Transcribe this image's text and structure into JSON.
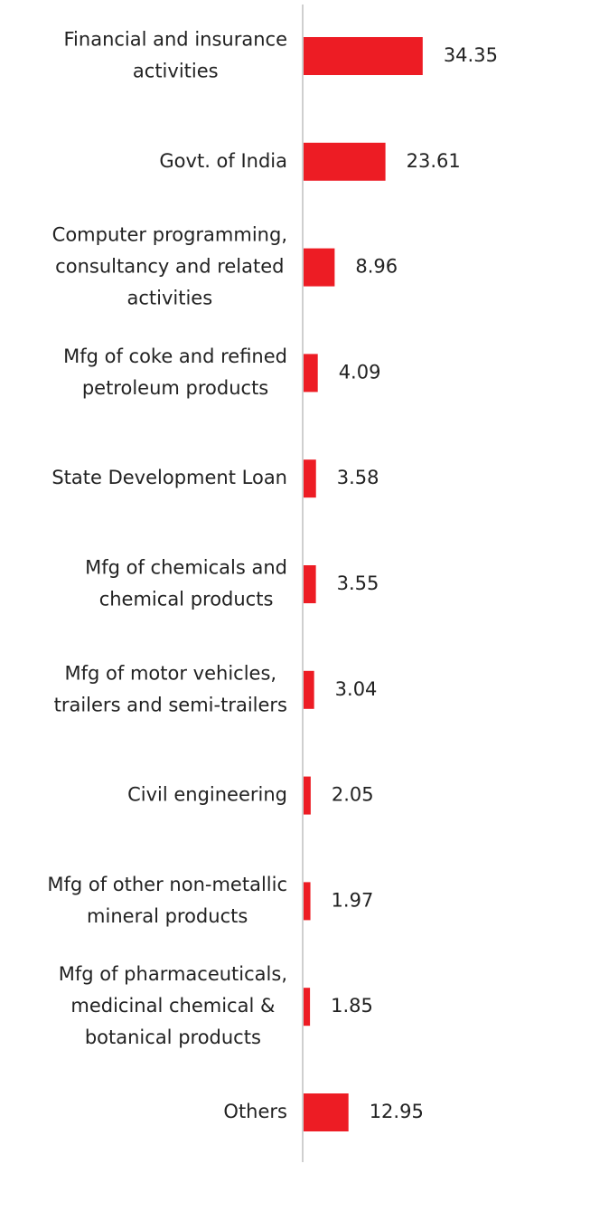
{
  "chart_data": {
    "type": "barh",
    "categories": [
      "Financial and insurance\nactivities",
      "Govt. of India",
      "Computer programming,\nconsultancy and related\nactivities",
      "Mfg of coke and refined\npetroleum products",
      "State Development Loan",
      "Mfg of chemicals and\nchemical products",
      "Mfg of motor vehicles,\ntrailers and semi-trailers",
      "Civil engineering",
      "Mfg of other non-metallic\nmineral products",
      "Mfg of pharmaceuticals,\nmedicinal chemical &\nbotanical products",
      "Others"
    ],
    "values": [
      34.35,
      23.61,
      8.96,
      4.09,
      3.58,
      3.55,
      3.04,
      2.05,
      1.97,
      1.85,
      12.95
    ],
    "value_labels": [
      "34.35",
      "23.61",
      "8.96",
      "4.09",
      "3.58",
      "3.55",
      "3.04",
      "2.05",
      "1.97",
      "1.85",
      "12.95"
    ],
    "color": "#ed1c24",
    "xlim": [
      0,
      80
    ]
  }
}
